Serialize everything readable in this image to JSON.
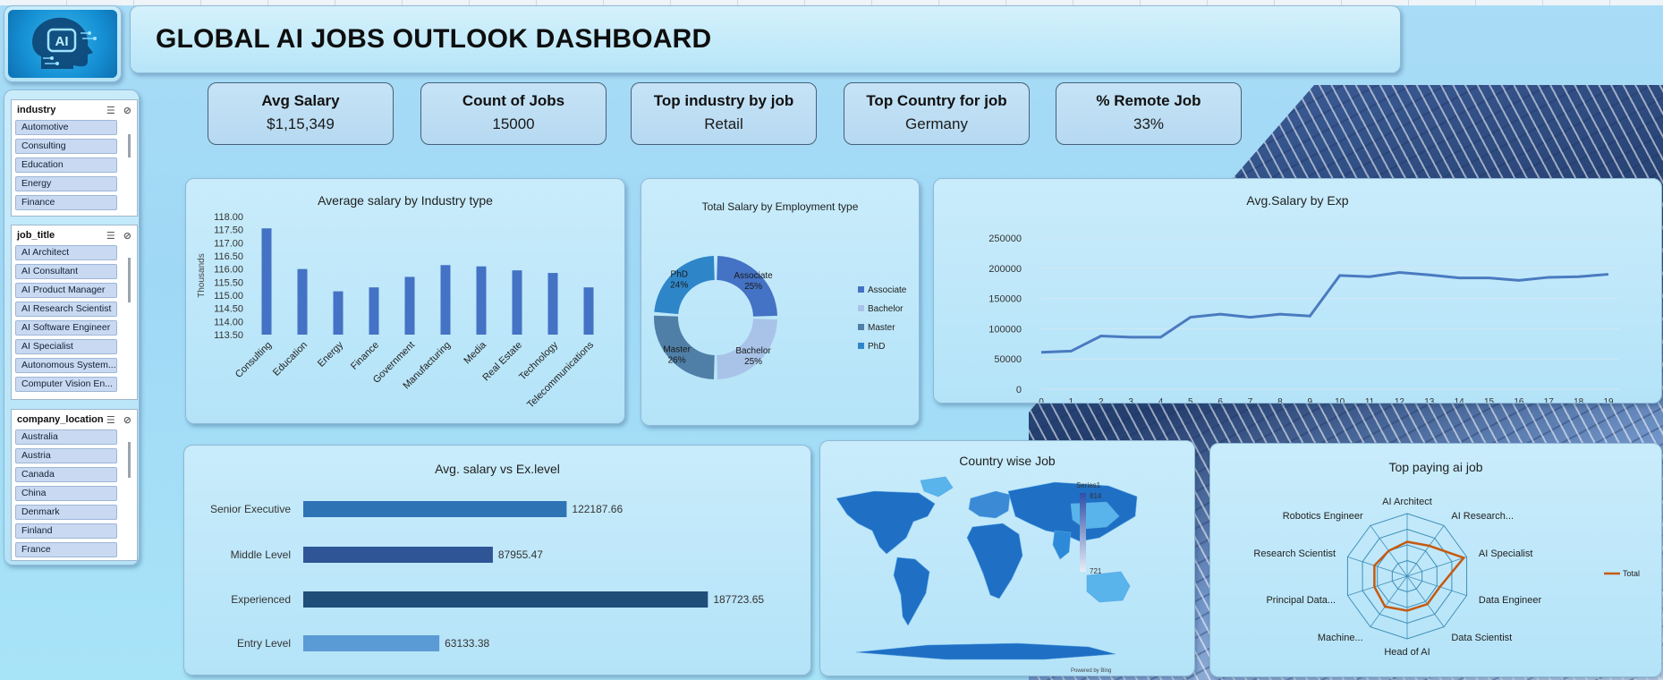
{
  "header": {
    "title": "GLOBAL AI JOBS OUTLOOK DASHBOARD",
    "logo_text": "AI",
    "logo_icon": "ai-head-icon"
  },
  "slicers": [
    {
      "name": "industry",
      "items": [
        "Automotive",
        "Consulting",
        "Education",
        "Energy",
        "Finance"
      ]
    },
    {
      "name": "job_title",
      "items": [
        "AI Architect",
        "AI Consultant",
        "AI Product Manager",
        "AI Research Scientist",
        "AI Software Engineer",
        "AI Specialist",
        "Autonomous System...",
        "Computer Vision En..."
      ]
    },
    {
      "name": "company_location",
      "items": [
        "Australia",
        "Austria",
        "Canada",
        "China",
        "Denmark",
        "Finland",
        "France"
      ]
    }
  ],
  "kpis": [
    {
      "label": "Avg Salary",
      "value": "$1,15,349"
    },
    {
      "label": "Count of Jobs",
      "value": "15000"
    },
    {
      "label": "Top industry by job",
      "value": "Retail"
    },
    {
      "label": "Top Country for job",
      "value": "Germany"
    },
    {
      "label": "% Remote Job",
      "value": "33%"
    }
  ],
  "colors": {
    "bar": "#4472c4",
    "line": "#4a7ac0",
    "radar": "#c55a11"
  },
  "chart_data": [
    {
      "type": "bar",
      "title": "Average salary by Industry type",
      "ylabel": "Thousands",
      "categories": [
        "Consulting",
        "Education",
        "Energy",
        "Finance",
        "Government",
        "Manufacturing",
        "Media",
        "Real Estate",
        "Technology",
        "Telecommunications"
      ],
      "values": [
        117.55,
        116.0,
        115.15,
        115.3,
        115.7,
        116.15,
        116.1,
        115.95,
        115.85,
        115.3
      ],
      "ylim": [
        113.5,
        118.0
      ],
      "yticks": [
        "118.00",
        "117.50",
        "117.00",
        "116.50",
        "116.00",
        "115.50",
        "115.00",
        "114.50",
        "114.00",
        "113.50"
      ]
    },
    {
      "type": "pie",
      "title": "Total Salary by Employment type",
      "categories": [
        "Associate",
        "Bachelor",
        "Master",
        "PhD"
      ],
      "values": [
        25,
        25,
        26,
        24
      ],
      "labels": [
        "25%",
        "25%",
        "26%",
        "24%"
      ],
      "colors": [
        "#4472c4",
        "#a9c3e8",
        "#4f7fa6",
        "#2e86c9"
      ],
      "legend": "right"
    },
    {
      "type": "line",
      "title": "Avg.Salary by Exp",
      "x": [
        0,
        1,
        2,
        3,
        4,
        5,
        6,
        7,
        8,
        9,
        10,
        11,
        12,
        13,
        14,
        15,
        16,
        17,
        18,
        19
      ],
      "values": [
        61000,
        63000,
        88000,
        86000,
        86000,
        119000,
        124000,
        119000,
        124000,
        121000,
        188000,
        186000,
        193000,
        189000,
        184000,
        184000,
        180000,
        185000,
        186000,
        190000
      ],
      "ylim": [
        0,
        250000
      ],
      "yticks": [
        "250000",
        "200000",
        "150000",
        "100000",
        "50000",
        "0"
      ]
    },
    {
      "type": "bar",
      "title": "Avg. salary vs Ex.level",
      "orientation": "horizontal",
      "categories": [
        "Senior Executive",
        "Middle Level",
        "Experienced",
        "Entry Level"
      ],
      "values": [
        122187.66,
        87955.47,
        187723.65,
        63133.38
      ],
      "labels": [
        "122187.66",
        "87955.47",
        "187723.65",
        "63133.38"
      ],
      "colors": [
        "#2e74b5",
        "#2f5597",
        "#1f4e79",
        "#5b9bd5"
      ]
    },
    {
      "type": "other",
      "title": "Country wise Job",
      "legend_name": "Series1",
      "scale_max": "814",
      "scale_min": "721",
      "attribution": "Powered by Bing"
    },
    {
      "type": "other",
      "title": "Top paying ai job",
      "categories": [
        "AI Architect",
        "AI Research...",
        "AI Specialist",
        "Data Engineer",
        "Data Scientist",
        "Head of AI",
        "Machine...",
        "Principal Data...",
        "Research Scientist",
        "Robotics Engineer"
      ],
      "values": [
        0.55,
        0.6,
        0.95,
        0.55,
        0.55,
        0.55,
        0.6,
        0.55,
        0.55,
        0.5
      ],
      "series_name": "Total"
    }
  ]
}
